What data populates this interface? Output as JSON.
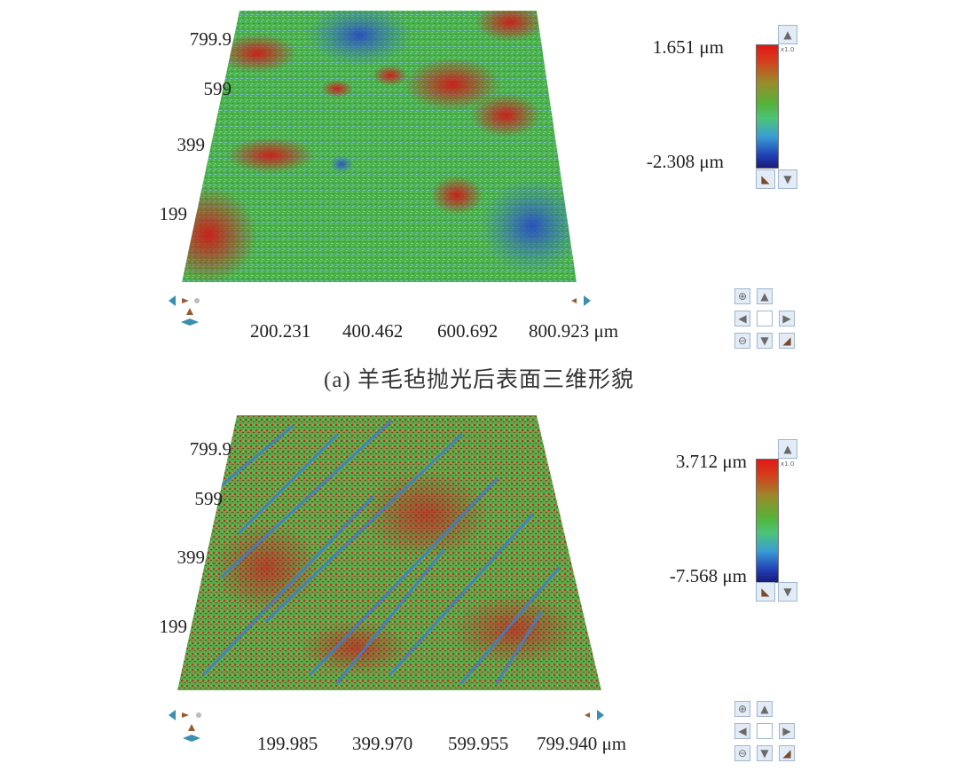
{
  "caption": "(a) 羊毛毡抛光后表面三维形貌",
  "panels": [
    {
      "y_ticks": [
        "799.9",
        "599",
        "399",
        "199"
      ],
      "x_ticks": [
        "200.231",
        "400.462",
        "600.692",
        "800.923 μm"
      ],
      "legend": {
        "max": "1.651 μm",
        "min": "-2.308 μm",
        "scale_tag": "x1.0"
      },
      "surface": "mostly green with red patches and a blue region at lower right"
    },
    {
      "y_ticks": [
        "799.9",
        "599",
        "399",
        "199"
      ],
      "x_ticks": [
        "199.985",
        "399.970",
        "599.955",
        "799.940 μm"
      ],
      "legend": {
        "max": "3.712 μm",
        "min": "-7.568 μm",
        "scale_tag": "x1.0"
      },
      "surface": "red and green with diagonal blue scratch streaks"
    }
  ],
  "colors": {
    "high": "#e01818",
    "mid": "#4bc47a",
    "low": "#1a1a7a"
  },
  "icons": [
    "arrow-up-icon",
    "arrow-down-icon",
    "arrow-left-icon",
    "arrow-right-icon",
    "zoom-in-icon",
    "zoom-out-icon",
    "reset-icon",
    "rotate-icon"
  ]
}
